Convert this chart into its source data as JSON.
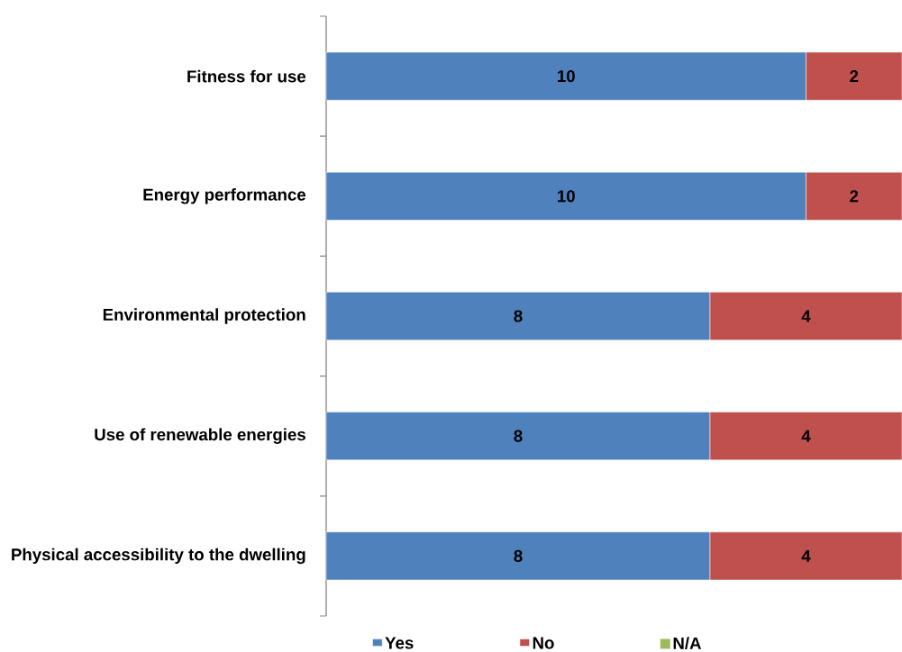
{
  "chart_data": {
    "type": "bar",
    "orientation": "horizontal",
    "stacked": true,
    "categories": [
      "Fitness for use",
      "Energy performance",
      "Environmental protection",
      "Use of renewable energies",
      "Physical accessibility to the dwelling"
    ],
    "series": [
      {
        "name": "Yes",
        "color": "#4f81bd",
        "values": [
          10,
          10,
          8,
          8,
          8
        ]
      },
      {
        "name": "No",
        "color": "#c0504d",
        "values": [
          2,
          2,
          4,
          4,
          4
        ]
      },
      {
        "name": "N/A",
        "color": "#9bbb59",
        "values": [
          null,
          null,
          null,
          null,
          null
        ]
      }
    ],
    "data_labels": true,
    "legend": "bottom"
  }
}
